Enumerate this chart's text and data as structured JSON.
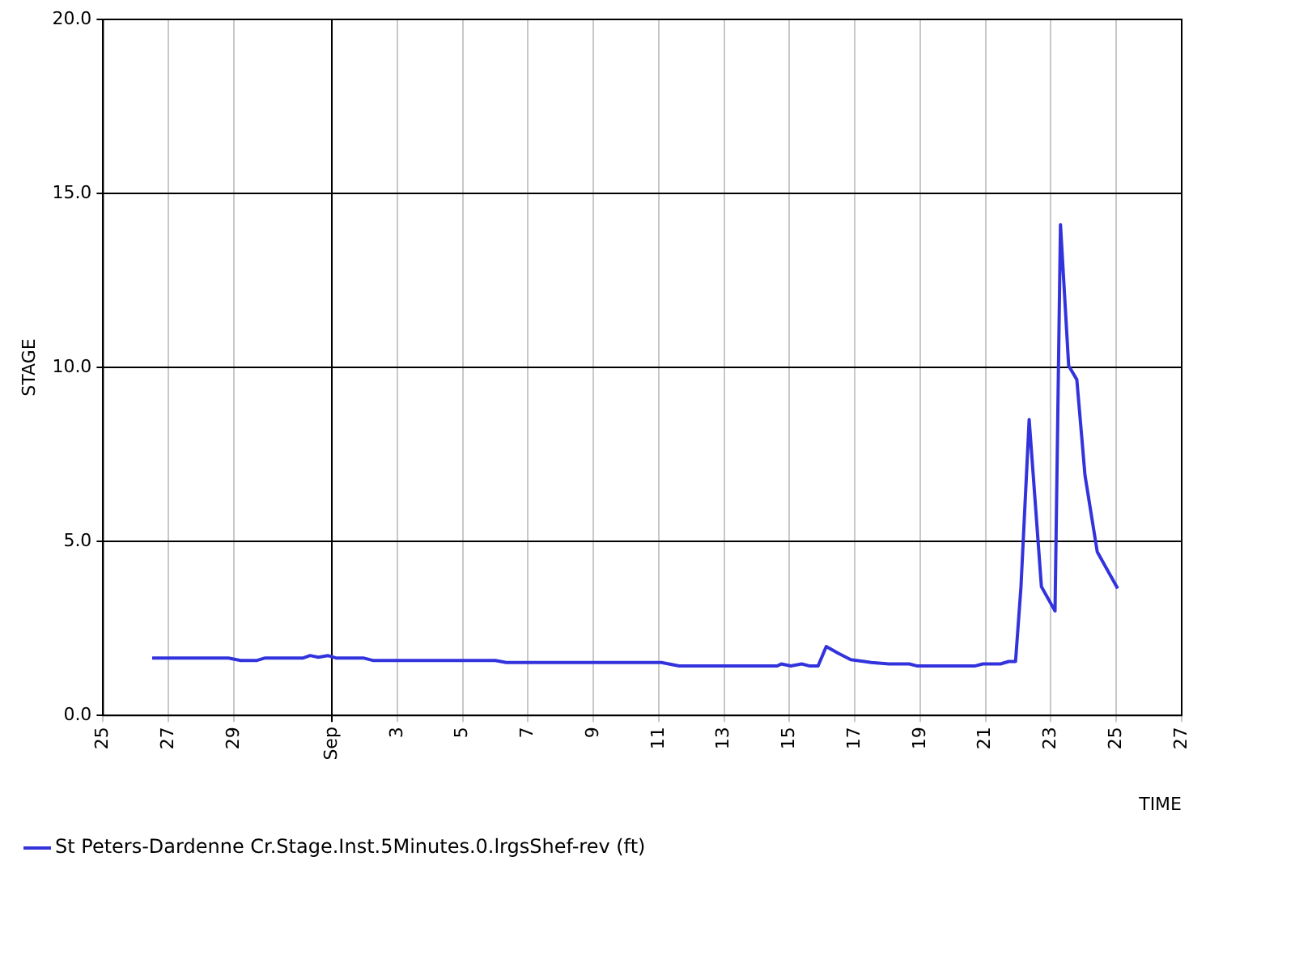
{
  "chart_data": {
    "type": "line",
    "xlabel": "TIME",
    "ylabel": "STAGE",
    "x": [
      "--08-26T12:00",
      "--08-28T20:00",
      "--08-29T05:00",
      "--08-29T17:00",
      "--08-29T23:00",
      "--08-31T03:00",
      "--08-31T08:00",
      "--08-31T14:00",
      "--08-31T21:00",
      "--09-01T03:00",
      "--09-01T23:00",
      "--09-02T06:00",
      "--09-06T00:00",
      "--09-06T08:00",
      "--09-11T02:00",
      "--09-11T15:00",
      "--09-14T15:00",
      "--09-14T18:00",
      "--09-15T01:00",
      "--09-15T09:00",
      "--09-15T15:00",
      "--09-15T21:00",
      "--09-16T03:00",
      "--09-16T12:00",
      "--09-16T21:00",
      "--09-17T07:00",
      "--09-17T12:00",
      "--09-18T01:00",
      "--09-18T16:00",
      "--09-18T22:00",
      "--09-20T16:00",
      "--09-20T22:00",
      "--09-21T11:00",
      "--09-21T17:00",
      "--09-21T22:00",
      "--09-22T02:00",
      "--09-22T08:00",
      "--09-22T17:00",
      "--09-23T03:00",
      "--09-23T07:00",
      "--09-23T13:00",
      "--09-23T19:00",
      "--09-24T01:00",
      "--09-24T10:00",
      "--09-25T01:00"
    ],
    "series": [
      {
        "name": "St Peters-Dardenne Cr.Stage.Inst.5Minutes.0.lrgsShef-rev (ft)",
        "color": "#3333dd",
        "values": [
          1.65,
          1.65,
          1.58,
          1.58,
          1.65,
          1.65,
          1.72,
          1.67,
          1.72,
          1.65,
          1.65,
          1.58,
          1.58,
          1.52,
          1.52,
          1.42,
          1.42,
          1.48,
          1.42,
          1.48,
          1.42,
          1.42,
          1.98,
          1.78,
          1.6,
          1.55,
          1.52,
          1.48,
          1.48,
          1.42,
          1.42,
          1.48,
          1.48,
          1.55,
          1.55,
          3.7,
          8.5,
          3.7,
          3.0,
          14.1,
          10.05,
          9.65,
          6.9,
          4.7,
          3.65
        ]
      }
    ],
    "xlim": [
      "--08-25",
      "--09-27"
    ],
    "xticks": [
      {
        "value": "--08-25",
        "label": "25"
      },
      {
        "value": "--08-27",
        "label": "27"
      },
      {
        "value": "--08-29",
        "label": "29"
      },
      {
        "value": "--09-01",
        "label": "Sep"
      },
      {
        "value": "--09-03",
        "label": "3"
      },
      {
        "value": "--09-05",
        "label": "5"
      },
      {
        "value": "--09-07",
        "label": "7"
      },
      {
        "value": "--09-09",
        "label": "9"
      },
      {
        "value": "--09-11",
        "label": "11"
      },
      {
        "value": "--09-13",
        "label": "13"
      },
      {
        "value": "--09-15",
        "label": "15"
      },
      {
        "value": "--09-17",
        "label": "17"
      },
      {
        "value": "--09-19",
        "label": "19"
      },
      {
        "value": "--09-21",
        "label": "21"
      },
      {
        "value": "--09-23",
        "label": "23"
      },
      {
        "value": "--09-25",
        "label": "25"
      },
      {
        "value": "--09-27",
        "label": "27"
      }
    ],
    "ylim": [
      0,
      20
    ],
    "yticks": [
      {
        "value": 0,
        "label": "0.0"
      },
      {
        "value": 5,
        "label": "5.0"
      },
      {
        "value": 10,
        "label": "10.0"
      },
      {
        "value": 15,
        "label": "15.0"
      },
      {
        "value": 20,
        "label": "20.0"
      }
    ],
    "grid": true,
    "legend": "bottom left",
    "marker": "none",
    "line_style": "solid"
  }
}
